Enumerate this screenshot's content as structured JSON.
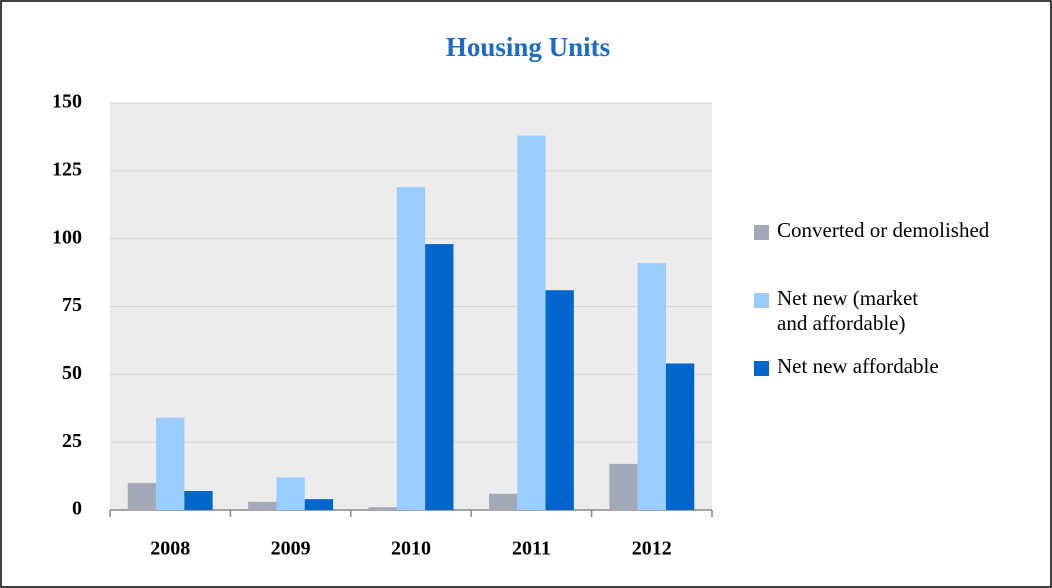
{
  "chart_data": {
    "type": "bar",
    "title": "Housing Units",
    "categories": [
      "2008",
      "2009",
      "2010",
      "2011",
      "2012"
    ],
    "series": [
      {
        "name": "Converted or demolished",
        "color": "#a3a9b8",
        "values": [
          10,
          3,
          1,
          6,
          17
        ]
      },
      {
        "name": "Net new (market and affordable)",
        "color": "#99ccff",
        "values": [
          34,
          12,
          119,
          138,
          91
        ]
      },
      {
        "name": "Net new affordable",
        "color": "#0066cc",
        "values": [
          7,
          4,
          98,
          81,
          54
        ]
      }
    ],
    "ylim": [
      0,
      150
    ],
    "yticks": [
      0,
      25,
      50,
      75,
      100,
      125,
      150
    ],
    "grid": true,
    "legend": "right"
  }
}
